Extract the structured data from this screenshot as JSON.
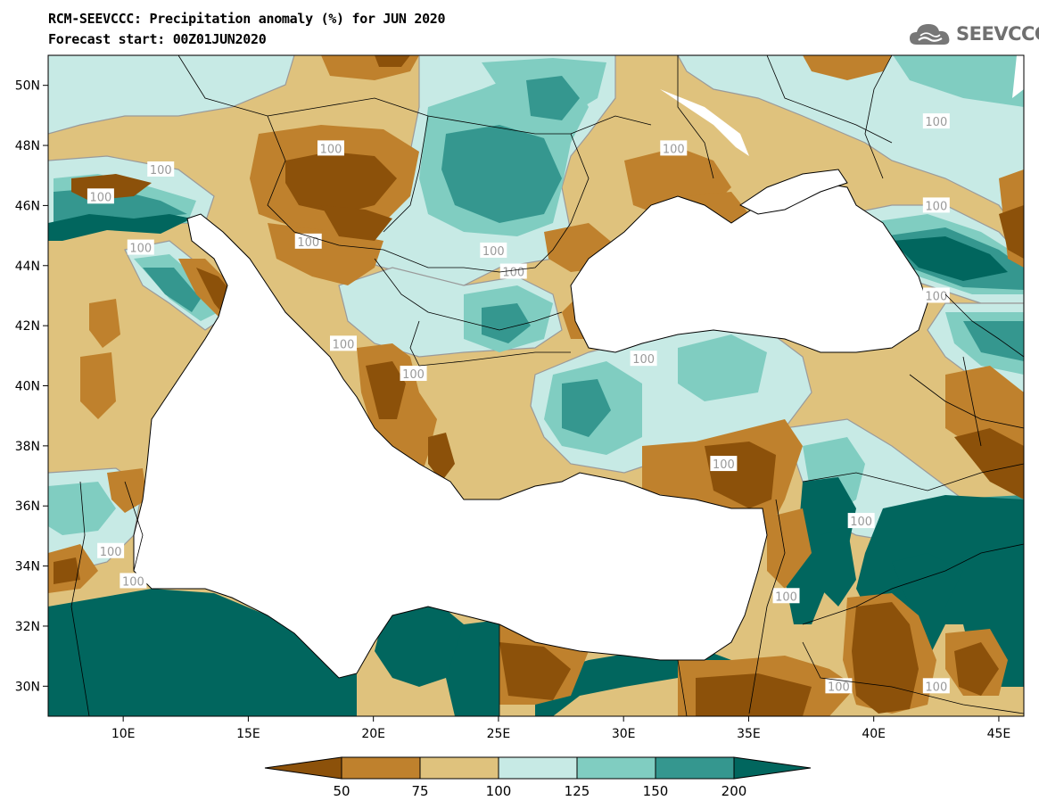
{
  "header": {
    "title": "RCM-SEEVCCC: Precipitation anomaly (%) for JUN 2020",
    "subtitle": "Forecast start: 00Z01JUN2020"
  },
  "logo": {
    "text": "SEEVCCC",
    "icon": "cloud-logo-icon"
  },
  "colors": {
    "below_50": "#8c510a",
    "50_75": "#bf812d",
    "75_100": "#dfc27d",
    "100_125": "#c7eae5",
    "125_150": "#80cdc1",
    "150_200": "#35978f",
    "above_200": "#01665e",
    "contour_line": "#9a9a9a",
    "sea": "#ffffff"
  },
  "map": {
    "lon_range": [
      7,
      46
    ],
    "lat_range": [
      29,
      51
    ],
    "x_ticks": [
      "10E",
      "15E",
      "20E",
      "25E",
      "30E",
      "35E",
      "40E",
      "45E"
    ],
    "x_tick_values": [
      10,
      15,
      20,
      25,
      30,
      35,
      40,
      45
    ],
    "y_ticks": [
      "50N",
      "48N",
      "46N",
      "44N",
      "42N",
      "40N",
      "38N",
      "36N",
      "34N",
      "32N",
      "30N"
    ],
    "y_tick_values": [
      50,
      48,
      46,
      44,
      42,
      40,
      38,
      36,
      34,
      32,
      30
    ],
    "contour_labels": [
      {
        "text": "100",
        "lon": 11.5,
        "lat": 47.2
      },
      {
        "text": "100",
        "lon": 18.3,
        "lat": 47.9
      },
      {
        "text": "100",
        "lon": 9.1,
        "lat": 46.3
      },
      {
        "text": "100",
        "lon": 10.7,
        "lat": 44.6
      },
      {
        "text": "100",
        "lon": 17.4,
        "lat": 44.8
      },
      {
        "text": "100",
        "lon": 24.8,
        "lat": 44.5
      },
      {
        "text": "100",
        "lon": 25.6,
        "lat": 43.8
      },
      {
        "text": "100",
        "lon": 32.0,
        "lat": 47.9
      },
      {
        "text": "100",
        "lon": 42.5,
        "lat": 48.8
      },
      {
        "text": "100",
        "lon": 42.5,
        "lat": 46.0
      },
      {
        "text": "100",
        "lon": 42.5,
        "lat": 43.0
      },
      {
        "text": "100",
        "lon": 18.8,
        "lat": 41.4
      },
      {
        "text": "100",
        "lon": 21.6,
        "lat": 40.4
      },
      {
        "text": "100",
        "lon": 30.8,
        "lat": 40.9
      },
      {
        "text": "100",
        "lon": 34.0,
        "lat": 37.4
      },
      {
        "text": "100",
        "lon": 39.5,
        "lat": 35.5
      },
      {
        "text": "100",
        "lon": 9.5,
        "lat": 34.5
      },
      {
        "text": "100",
        "lon": 10.4,
        "lat": 33.5
      },
      {
        "text": "100",
        "lon": 36.5,
        "lat": 33.0
      },
      {
        "text": "100",
        "lon": 38.6,
        "lat": 30.0
      },
      {
        "text": "100",
        "lon": 42.5,
        "lat": 30.0
      }
    ]
  },
  "colorbar": {
    "levels": [
      "50",
      "75",
      "100",
      "125",
      "150",
      "200"
    ]
  }
}
